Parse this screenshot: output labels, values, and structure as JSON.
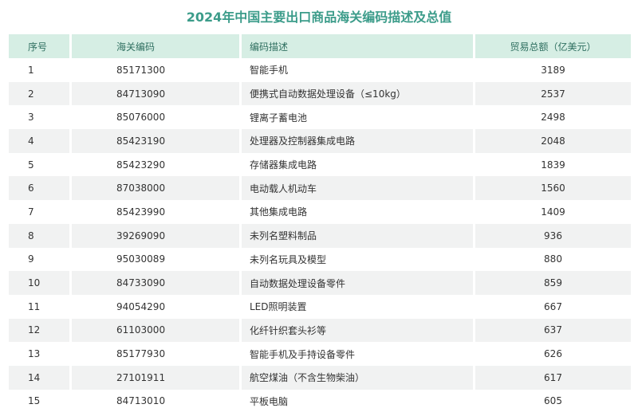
{
  "header": {
    "title": "2024年中国主要出口商品海关编码描述及总值"
  },
  "table": {
    "columns": [
      "序号",
      "海关编码",
      "编码描述",
      "贸易总额（亿美元）"
    ],
    "rows": [
      [
        1,
        "85171300",
        "智能手机",
        3189
      ],
      [
        2,
        "84713090",
        "便携式自动数据处理设备（≤10kg）",
        2537
      ],
      [
        3,
        "85076000",
        "锂离子蓄电池",
        2498
      ],
      [
        4,
        "85423190",
        "处理器及控制器集成电路",
        2048
      ],
      [
        5,
        "85423290",
        "存储器集成电路",
        1839
      ],
      [
        6,
        "87038000",
        "电动载人机动车",
        1560
      ],
      [
        7,
        "85423990",
        "其他集成电路",
        1409
      ],
      [
        8,
        "39269090",
        "未列名塑料制品",
        936
      ],
      [
        9,
        "95030089",
        "未列名玩具及模型",
        880
      ],
      [
        10,
        "84733090",
        "自动数据处理设备零件",
        859
      ],
      [
        11,
        "94054290",
        "LED照明装置",
        667
      ],
      [
        12,
        "61103000",
        "化纤针织套头衫等",
        637
      ],
      [
        13,
        "85177930",
        "智能手机及手持设备零件",
        626
      ],
      [
        14,
        "27101911",
        "航空煤油（不含生物柴油）",
        617
      ],
      [
        15,
        "84713010",
        "平板电脑",
        605
      ]
    ]
  }
}
